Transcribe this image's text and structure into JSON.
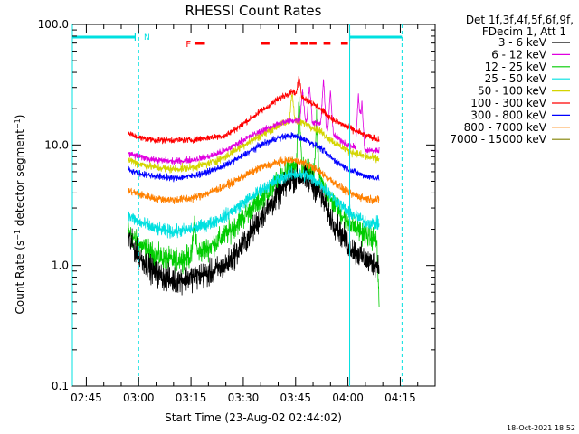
{
  "chart_data": {
    "type": "line",
    "title": "RHESSI Count Rates",
    "xlabel": "Start Time (23-Aug-02 02:44:02)",
    "ylabel": "Count Rate (s⁻¹ detector segment⁻¹)",
    "ylabel_parts": {
      "a": "Count Rate (s",
      "sup1": "−1",
      "b": " detector segment",
      "sup2": "−1",
      "c": ")"
    },
    "yscale": "log",
    "ylim": [
      0.1,
      100
    ],
    "xlim": [
      "02:41",
      "04:25"
    ],
    "xlim_min": [
      161,
      265
    ],
    "xticks": [
      {
        "label": "02:45",
        "min": 165
      },
      {
        "label": "03:00",
        "min": 180
      },
      {
        "label": "03:15",
        "min": 195
      },
      {
        "label": "03:30",
        "min": 210
      },
      {
        "label": "03:45",
        "min": 225
      },
      {
        "label": "04:00",
        "min": 240
      },
      {
        "label": "04:15",
        "min": 255
      }
    ],
    "yticks": [
      {
        "label": "100.0",
        "v": 100
      },
      {
        "label": "10.0",
        "v": 10
      },
      {
        "label": "1.0",
        "v": 1
      },
      {
        "label": "0.1",
        "v": 0.1
      }
    ],
    "legend_header": [
      "Det 1f,3f,4f,5f,6f,9f,",
      "FDecim 1, Att 1"
    ],
    "legend_placement": "right",
    "data_start": "02:57",
    "data_end": "04:09",
    "series": [
      {
        "name": "3 - 6 keV",
        "color": "#000000",
        "points": [
          [
            177,
            1.7
          ],
          [
            180,
            1.2
          ],
          [
            185,
            0.85
          ],
          [
            190,
            0.75
          ],
          [
            195,
            0.8
          ],
          [
            200,
            0.85
          ],
          [
            205,
            1.0
          ],
          [
            210,
            1.5
          ],
          [
            215,
            2.5
          ],
          [
            220,
            3.8
          ],
          [
            223,
            5.0
          ],
          [
            226,
            5.5
          ],
          [
            229,
            5.0
          ],
          [
            232,
            4.0
          ],
          [
            235,
            2.5
          ],
          [
            240,
            1.5
          ],
          [
            245,
            1.1
          ],
          [
            249,
            1.0
          ]
        ]
      },
      {
        "name": "6 - 12 keV",
        "color": "#e000e0",
        "points": [
          [
            177,
            8.5
          ],
          [
            180,
            8.0
          ],
          [
            185,
            7.5
          ],
          [
            190,
            7.3
          ],
          [
            195,
            7.5
          ],
          [
            200,
            8.0
          ],
          [
            205,
            9.0
          ],
          [
            210,
            11.0
          ],
          [
            215,
            13.0
          ],
          [
            220,
            15.0
          ],
          [
            224,
            16.0
          ],
          [
            228,
            16.0
          ],
          [
            232,
            15.0
          ],
          [
            236,
            12.0
          ],
          [
            240,
            10.0
          ],
          [
            245,
            9.0
          ],
          [
            249,
            9.0
          ]
        ]
      },
      {
        "name": "12 - 25 keV",
        "color": "#00cc00",
        "points": [
          [
            177,
            1.9
          ],
          [
            180,
            1.5
          ],
          [
            185,
            1.2
          ],
          [
            190,
            1.1
          ],
          [
            195,
            1.2
          ],
          [
            200,
            1.4
          ],
          [
            205,
            1.8
          ],
          [
            210,
            2.5
          ],
          [
            215,
            3.5
          ],
          [
            220,
            5.0
          ],
          [
            223,
            6.5
          ],
          [
            226,
            6.5
          ],
          [
            229,
            6.0
          ],
          [
            232,
            5.0
          ],
          [
            235,
            3.5
          ],
          [
            240,
            2.3
          ],
          [
            245,
            1.8
          ],
          [
            249,
            1.6
          ]
        ]
      },
      {
        "name": "25 - 50 keV",
        "color": "#00e0e0",
        "points": [
          [
            177,
            2.6
          ],
          [
            180,
            2.3
          ],
          [
            185,
            2.0
          ],
          [
            190,
            1.9
          ],
          [
            195,
            2.0
          ],
          [
            200,
            2.2
          ],
          [
            205,
            2.6
          ],
          [
            210,
            3.3
          ],
          [
            215,
            4.2
          ],
          [
            220,
            5.2
          ],
          [
            224,
            5.8
          ],
          [
            228,
            5.6
          ],
          [
            232,
            4.8
          ],
          [
            236,
            3.6
          ],
          [
            240,
            2.8
          ],
          [
            245,
            2.3
          ],
          [
            249,
            2.2
          ]
        ]
      },
      {
        "name": "50 - 100 keV",
        "color": "#d4d400",
        "points": [
          [
            177,
            7.6
          ],
          [
            180,
            7.0
          ],
          [
            185,
            6.5
          ],
          [
            190,
            6.3
          ],
          [
            195,
            6.5
          ],
          [
            200,
            7.0
          ],
          [
            205,
            8.0
          ],
          [
            210,
            10.0
          ],
          [
            215,
            12.0
          ],
          [
            220,
            14.5
          ],
          [
            224,
            16.0
          ],
          [
            228,
            15.0
          ],
          [
            232,
            13.0
          ],
          [
            236,
            10.5
          ],
          [
            240,
            9.0
          ],
          [
            245,
            8.0
          ],
          [
            249,
            7.6
          ]
        ]
      },
      {
        "name": "100 - 300 keV",
        "color": "#ff0000",
        "points": [
          [
            177,
            12.5
          ],
          [
            180,
            11.5
          ],
          [
            185,
            11.0
          ],
          [
            190,
            11.0
          ],
          [
            195,
            11.0
          ],
          [
            200,
            11.5
          ],
          [
            205,
            12.0
          ],
          [
            210,
            15.0
          ],
          [
            215,
            19.0
          ],
          [
            220,
            24.0
          ],
          [
            224,
            28.0
          ],
          [
            228,
            24.0
          ],
          [
            232,
            20.0
          ],
          [
            236,
            16.0
          ],
          [
            240,
            14.0
          ],
          [
            245,
            12.0
          ],
          [
            249,
            11.0
          ]
        ]
      },
      {
        "name": "300 - 800 keV",
        "color": "#0000ff",
        "points": [
          [
            177,
            6.3
          ],
          [
            180,
            5.8
          ],
          [
            185,
            5.5
          ],
          [
            190,
            5.3
          ],
          [
            195,
            5.5
          ],
          [
            200,
            6.0
          ],
          [
            205,
            6.8
          ],
          [
            210,
            8.2
          ],
          [
            215,
            10.0
          ],
          [
            220,
            11.5
          ],
          [
            224,
            12.0
          ],
          [
            228,
            11.0
          ],
          [
            232,
            9.5
          ],
          [
            236,
            7.5
          ],
          [
            240,
            6.3
          ],
          [
            245,
            5.5
          ],
          [
            249,
            5.3
          ]
        ]
      },
      {
        "name": "800 - 7000 keV",
        "color": "#ff8000",
        "points": [
          [
            177,
            4.2
          ],
          [
            180,
            3.9
          ],
          [
            185,
            3.6
          ],
          [
            190,
            3.5
          ],
          [
            195,
            3.6
          ],
          [
            200,
            4.0
          ],
          [
            205,
            4.6
          ],
          [
            210,
            5.5
          ],
          [
            215,
            6.5
          ],
          [
            220,
            7.2
          ],
          [
            224,
            7.5
          ],
          [
            228,
            7.0
          ],
          [
            232,
            6.0
          ],
          [
            236,
            4.9
          ],
          [
            240,
            4.0
          ],
          [
            245,
            3.6
          ],
          [
            249,
            3.5
          ]
        ]
      },
      {
        "name": "7000 - 15000 keV",
        "color": "#808000",
        "points": []
      }
    ],
    "annotations": {
      "flags": {
        "N": "N",
        "F": "F"
      },
      "attenuator_label": "N",
      "flare_label": "F"
    }
  },
  "footer_date": "18-Oct-2021 18:52",
  "colors": {
    "night": "#00e0e0",
    "flare": "#ff0000"
  }
}
